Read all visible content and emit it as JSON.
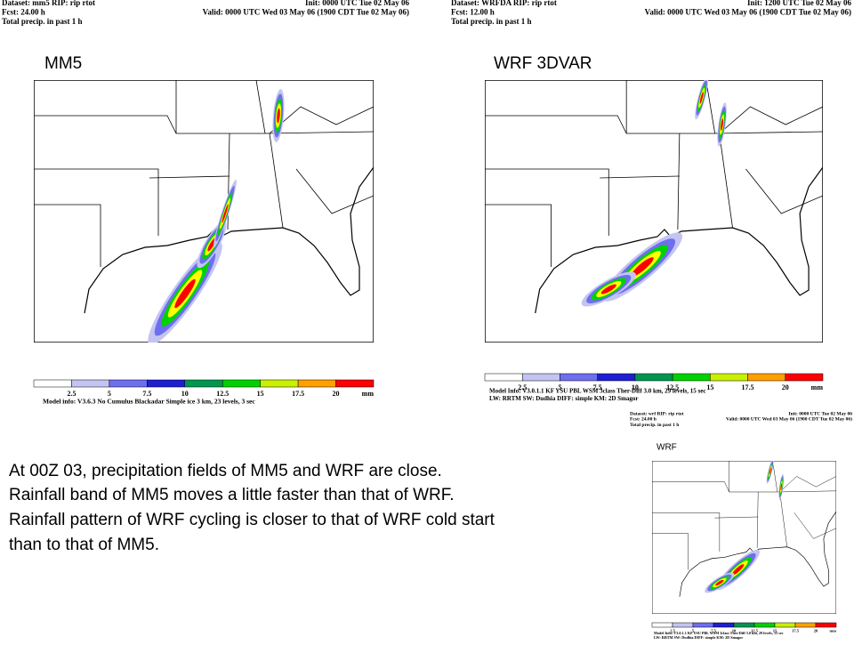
{
  "panels": [
    {
      "header": {
        "dataset": "Dataset: mm5  RIP: rip rtot",
        "init": "Init: 0000 UTC Tue 02 May 06",
        "fcst": "Fcst: 24.00 h",
        "valid": "Valid: 0000 UTC Wed 03 May 06 (1900 CDT Tue 02 May 06)",
        "field": "Total precip. in past 1 h"
      },
      "title": "MM5",
      "legend": {
        "labels": [
          2.5,
          5,
          7.5,
          10,
          12.5,
          15,
          17.5,
          20
        ],
        "unit": "mm"
      },
      "model_info": [
        "Model info: V3.6.3   No Cumulus   Blackadar   Simple ice      3 km, 23 levels,     3 sec"
      ]
    },
    {
      "header": {
        "dataset": "Dataset: WRFDA  RIP: rip rtot",
        "init": "Init: 1200 UTC Tue 02 May 06",
        "fcst": "Fcst: 12.00 h",
        "valid": "Valid: 0000 UTC Wed 03 May 06 (1900 CDT Tue 02 May 06)",
        "field": "Total precip. in past 1 h"
      },
      "title": "WRF 3DVAR",
      "legend": {
        "labels": [
          2.5,
          5,
          7.5,
          10,
          12.5,
          15,
          17.5,
          20
        ],
        "unit": "mm"
      },
      "model_info": [
        "Model Info: V3.0.1.1  KF     YSU PBL   WSM 3class   Ther-Diff  3.0 km, 29 levels,   15 sec",
        "LW: RRTM  SW: Dudhia   DIFF: simple  KM: 2D Smagor"
      ]
    },
    {
      "header": {
        "dataset": "Dataset: wrf  RIP: rip rtot",
        "init": "Init: 0000 UTC Tue 02 May 06",
        "fcst": "Fcst: 24.00 h",
        "valid": "Valid: 0000 UTC Wed 03 May 06 (1900 CDT Tue 02 May 06)",
        "field": "Total precip. in past 1 h"
      },
      "title": "WRF",
      "legend": {
        "labels": [
          2.5,
          5,
          7.5,
          10,
          12.5,
          15,
          17.5,
          20
        ],
        "unit": "mm"
      },
      "model_info": [
        "Model Info: V3.0.1.1  KF     YSU PBL   WSM 3class   Ther-Diff  3.0 km, 29 levels,   15 sec",
        "LW: RRTM  SW: Dudhia   DIFF: simple  KM: 2D Smagor"
      ]
    }
  ],
  "notes": [
    "At 00Z 03, precipitation fields of MM5 and WRF are close.",
    "Rainfall band of MM5 moves a little faster than that of WRF.",
    "Rainfall pattern of WRF cycling is closer to that of WRF cold start",
    "than to that of  MM5."
  ]
}
